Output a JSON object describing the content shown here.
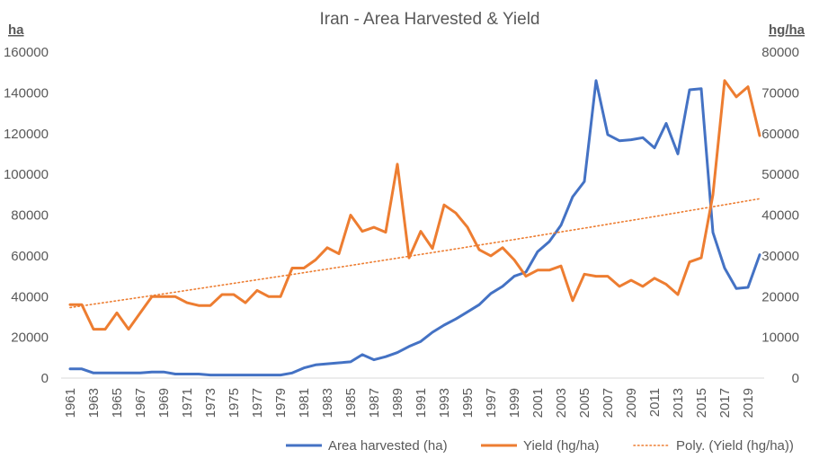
{
  "chart_data": {
    "type": "line",
    "title": "Iran - Area Harvested & Yield",
    "y_left_label": "ha",
    "y_right_label": "hg/ha",
    "y_left_lim": [
      0,
      160000
    ],
    "y_left_ticks": [
      0,
      20000,
      40000,
      60000,
      80000,
      100000,
      120000,
      140000,
      160000
    ],
    "y_right_lim": [
      0,
      80000
    ],
    "y_right_ticks": [
      0,
      10000,
      20000,
      30000,
      40000,
      50000,
      60000,
      70000,
      80000
    ],
    "x_tick_labels": [
      "1961",
      "1963",
      "1965",
      "1967",
      "1969",
      "1971",
      "1973",
      "1975",
      "1977",
      "1979",
      "1981",
      "1983",
      "1985",
      "1987",
      "1989",
      "1991",
      "1993",
      "1995",
      "1997",
      "1999",
      "2001",
      "2003",
      "2005",
      "2007",
      "2009",
      "2011",
      "2013",
      "2015",
      "2017",
      "2019"
    ],
    "x": [
      1961,
      1962,
      1963,
      1964,
      1965,
      1966,
      1967,
      1968,
      1969,
      1970,
      1971,
      1972,
      1973,
      1974,
      1975,
      1976,
      1977,
      1978,
      1979,
      1980,
      1981,
      1982,
      1983,
      1984,
      1985,
      1986,
      1987,
      1988,
      1989,
      1990,
      1991,
      1992,
      1993,
      1994,
      1995,
      1996,
      1997,
      1998,
      1999,
      2000,
      2001,
      2002,
      2003,
      2004,
      2005,
      2006,
      2007,
      2008,
      2009,
      2010,
      2011,
      2012,
      2013,
      2014,
      2015,
      2016,
      2017,
      2018,
      2019,
      2020
    ],
    "grid": false,
    "legend_position": "bottom",
    "series": [
      {
        "name": "Area harvested (ha)",
        "axis": "left",
        "color": "#4472c4",
        "values": [
          4500,
          4500,
          2500,
          2500,
          2500,
          2500,
          2500,
          3000,
          3000,
          2000,
          2000,
          2000,
          1500,
          1500,
          1500,
          1500,
          1500,
          1500,
          1500,
          2500,
          5000,
          6500,
          7000,
          7500,
          8000,
          11500,
          9000,
          10500,
          12500,
          15500,
          18000,
          22500,
          26000,
          29000,
          32500,
          36000,
          41500,
          45000,
          50000,
          52000,
          62000,
          67000,
          75000,
          89000,
          96500,
          146000,
          119500,
          116500,
          117000,
          118000,
          113000,
          125000,
          110000,
          141500,
          142000,
          71500,
          54000,
          44000,
          44500,
          60500
        ]
      },
      {
        "name": "Yield (hg/ha)",
        "axis": "right",
        "color": "#ed7d31",
        "values": [
          18000,
          18000,
          12000,
          12000,
          16000,
          12000,
          16000,
          20000,
          20000,
          20000,
          18500,
          17800,
          17800,
          20500,
          20500,
          18500,
          21500,
          20000,
          20000,
          27000,
          27000,
          29000,
          32000,
          30500,
          40000,
          36000,
          37000,
          35800,
          52500,
          29500,
          36000,
          31800,
          42500,
          40500,
          37000,
          31500,
          30000,
          32000,
          29000,
          25000,
          26500,
          26500,
          27500,
          19000,
          25500,
          25000,
          25000,
          22500,
          24000,
          22500,
          24500,
          23000,
          20500,
          28500,
          29500,
          45000,
          73000,
          69000,
          71500,
          59500
        ]
      },
      {
        "name": "Poly. (Yield (hg/ha))",
        "axis": "right",
        "color": "#ed7d31",
        "style": "dotted",
        "trend": "polynomial",
        "start": 17300,
        "end": 44000
      }
    ]
  }
}
